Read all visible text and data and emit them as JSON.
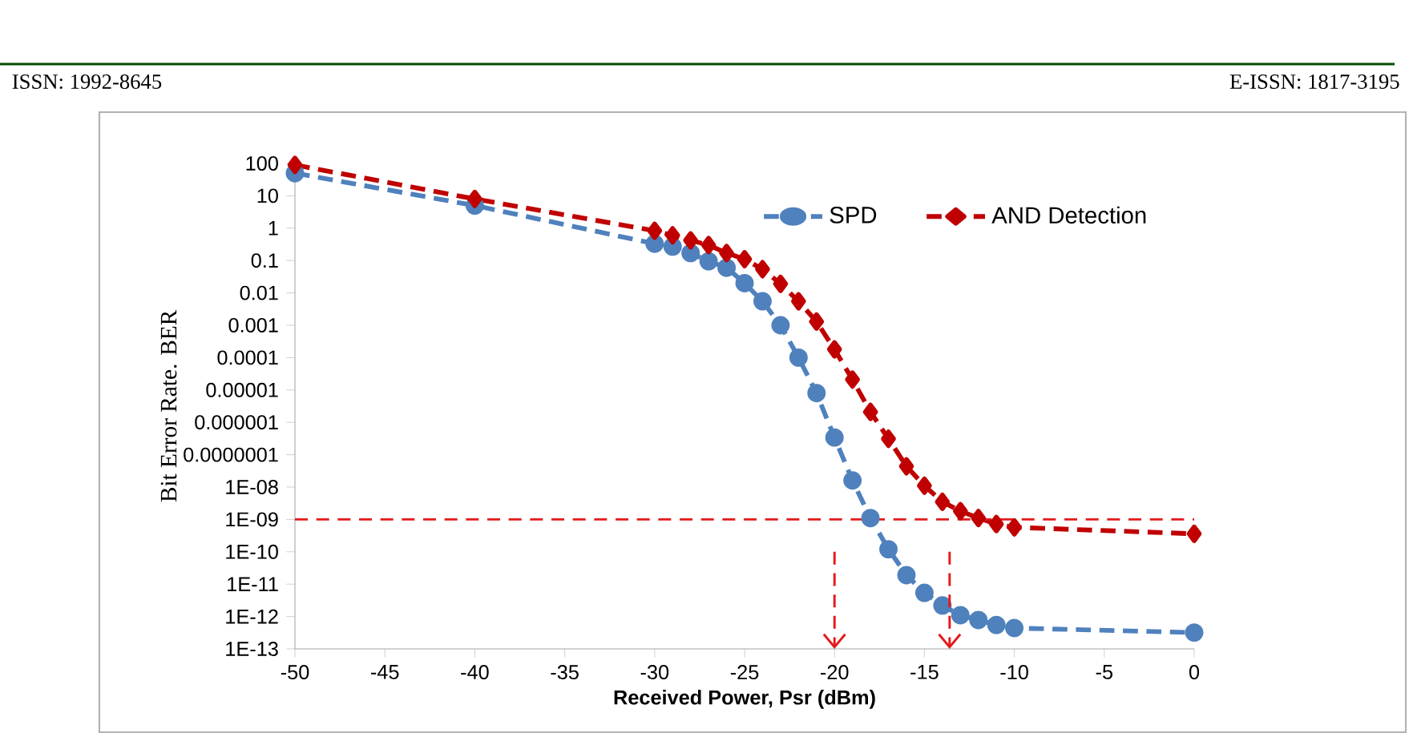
{
  "chart_data": {
    "type": "line",
    "xlabel": "Received Power, Psr (dBm)",
    "ylabel": "Bit Error Rate. BER",
    "annotations": [
      "ISSN: 1992-8645",
      "E-ISSN: 1817-3195"
    ],
    "log": "y",
    "line_style": "dashed",
    "legend": "top right",
    "xlim": [
      -50,
      0
    ],
    "xticks": [
      -50,
      -45,
      -40,
      -35,
      -30,
      -25,
      -20,
      -15,
      -10,
      -5,
      0
    ],
    "ylim": [
      1e-13,
      100
    ],
    "yticks": [
      100,
      10,
      1,
      0.1,
      0.01,
      0.001,
      0.0001,
      {
        "value": 1e-05,
        "label": "0.00001"
      },
      {
        "value": 1e-06,
        "label": "0.000001"
      },
      {
        "value": 1e-07,
        "label": "0.0000001"
      },
      {
        "value": 1e-08,
        "label": "1E-08"
      },
      {
        "value": 1e-09,
        "label": "1E-09"
      },
      {
        "value": 1e-10,
        "label": "1E-10"
      },
      {
        "value": 1e-11,
        "label": "1E-11"
      },
      {
        "value": 1e-12,
        "label": "1E-12"
      },
      {
        "value": 1e-13,
        "label": "1E-13"
      }
    ],
    "ref_lines": [
      {
        "axis": "y",
        "value": 1e-09,
        "color": "#e41a1c",
        "line_style": "dashed"
      },
      {
        "axis": "x",
        "value": -20,
        "color": "#e41a1c",
        "line_style": "dashed"
      },
      {
        "axis": "x",
        "value": -13.6,
        "color": "#e41a1c",
        "line_style": "dashed"
      }
    ],
    "series": [
      {
        "name": "SPD",
        "color": "#4f81bd",
        "marker": "circle",
        "x": [
          -50,
          -40,
          -30,
          -29,
          -28,
          -27,
          -26,
          -25,
          -24,
          -23,
          -22,
          -21,
          -20,
          -19,
          -18,
          -17,
          -16,
          -15,
          -14,
          -13,
          -12,
          -11,
          -10,
          0
        ],
        "values": [
          50,
          5,
          0.33,
          0.27,
          0.17,
          0.095,
          0.06,
          0.02,
          0.0055,
          0.001,
          0.0001,
          8e-06,
          3.4e-07,
          1.6e-08,
          1.1e-09,
          1.2e-10,
          1.9e-11,
          5.4e-12,
          2.2e-12,
          1.1e-12,
          7.8e-13,
          5.5e-13,
          4.4e-13,
          3.2e-13
        ]
      },
      {
        "name": "AND Detection",
        "color": "#c00000",
        "marker": "diamond",
        "x": [
          -50,
          -40,
          -30,
          -29,
          -28,
          -27,
          -26,
          -25,
          -24,
          -23,
          -22,
          -21,
          -20,
          -19,
          -18,
          -17,
          -16,
          -15,
          -14,
          -13,
          -12,
          -11,
          -10,
          0
        ],
        "values": [
          90,
          8,
          0.83,
          0.6,
          0.42,
          0.3,
          0.17,
          0.11,
          0.054,
          0.019,
          0.0055,
          0.0013,
          0.00018,
          2.1e-05,
          2.1e-06,
          3.1e-07,
          4.4e-08,
          1.1e-08,
          3.5e-09,
          1.8e-09,
          1.1e-09,
          7.2e-10,
          5.7e-10,
          3.6e-10
        ]
      }
    ]
  }
}
